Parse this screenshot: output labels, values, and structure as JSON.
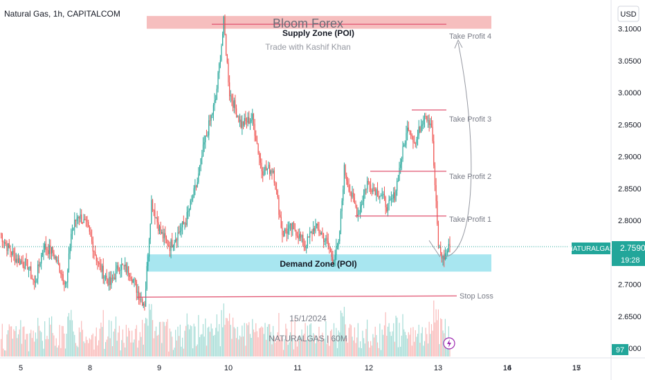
{
  "header": {
    "symbol_line": "Natural Gas, 1h, CAPITALCOM",
    "currency": "USD"
  },
  "watermark": {
    "title": "Bloom Forex",
    "subtitle": "Trade with Kashif Khan",
    "date": "15/1/2024",
    "symbol": "NATURALGAS | 60M"
  },
  "zones": {
    "supply_label": "Supply Zone (POI)",
    "demand_label": "Demand Zone (POI)"
  },
  "levels": {
    "tp4": "Take Profit 4",
    "tp3": "Take Profit 3",
    "tp2": "Take Profit 2",
    "tp1": "Take Profit 1",
    "stop": "Stop Loss"
  },
  "price_tag": {
    "symbol": "NATURALGAS",
    "price": "2.7590",
    "countdown": "19:28"
  },
  "volume_tag": "97",
  "colors": {
    "up": "#26a69a",
    "down": "#ef5350",
    "supply": "#f4b3b3",
    "demand": "#9fe3ee",
    "level_line": "#e0506e",
    "tag": "#22a69a"
  },
  "icons": {
    "alert": "lightning-icon"
  },
  "chart_data": {
    "type": "candlestick",
    "y_axis_ticks": [
      "3.1000",
      "3.0500",
      "3.0000",
      "2.9500",
      "2.9000",
      "2.8500",
      "2.8000",
      "2.7500",
      "2.7000",
      "2.6500",
      "2.6000"
    ],
    "x_axis_ticks": [
      "5",
      "8",
      "9",
      "10",
      "11",
      "12",
      "13",
      "14",
      "15",
      "16",
      "17"
    ],
    "ylim": [
      2.585,
      3.145
    ],
    "last_price": 2.759,
    "supply_zone": [
      3.1,
      3.12
    ],
    "demand_zone": [
      2.72,
      2.747
    ],
    "take_profit_4": 3.107,
    "take_profit_3": 2.973,
    "take_profit_2": 2.877,
    "take_profit_1": 2.807,
    "stop_loss": 2.682,
    "anchors": [
      [
        2.78,
        0
      ],
      [
        2.76,
        6
      ],
      [
        2.74,
        14
      ],
      [
        2.73,
        24
      ],
      [
        2.7,
        30
      ],
      [
        2.76,
        38
      ],
      [
        2.75,
        46
      ],
      [
        2.7,
        58
      ],
      [
        2.78,
        62
      ],
      [
        2.81,
        68
      ],
      [
        2.79,
        76
      ],
      [
        2.73,
        86
      ],
      [
        2.7,
        96
      ],
      [
        2.73,
        104
      ],
      [
        2.72,
        113
      ],
      [
        2.68,
        122
      ],
      [
        2.67,
        126
      ],
      [
        2.83,
        132
      ],
      [
        2.78,
        140
      ],
      [
        2.76,
        148
      ],
      [
        2.8,
        162
      ],
      [
        2.86,
        172
      ],
      [
        2.92,
        178
      ],
      [
        2.99,
        188
      ],
      [
        3.11,
        195
      ],
      [
        3.0,
        200
      ],
      [
        2.95,
        210
      ],
      [
        2.96,
        220
      ],
      [
        2.88,
        228
      ],
      [
        2.88,
        238
      ],
      [
        2.78,
        246
      ],
      [
        2.79,
        256
      ],
      [
        2.76,
        266
      ],
      [
        2.79,
        274
      ],
      [
        2.78,
        280
      ],
      [
        2.76,
        286
      ],
      [
        2.74,
        290
      ],
      [
        2.76,
        295
      ],
      [
        2.88,
        300
      ],
      [
        2.84,
        306
      ],
      [
        2.81,
        312
      ],
      [
        2.86,
        320
      ],
      [
        2.84,
        332
      ],
      [
        2.82,
        338
      ],
      [
        2.84,
        344
      ],
      [
        2.9,
        350
      ],
      [
        2.95,
        356
      ],
      [
        2.92,
        362
      ],
      [
        2.97,
        370
      ],
      [
        2.95,
        376
      ],
      [
        2.76,
        382
      ],
      [
        2.74,
        386
      ],
      [
        2.76,
        392
      ]
    ]
  }
}
